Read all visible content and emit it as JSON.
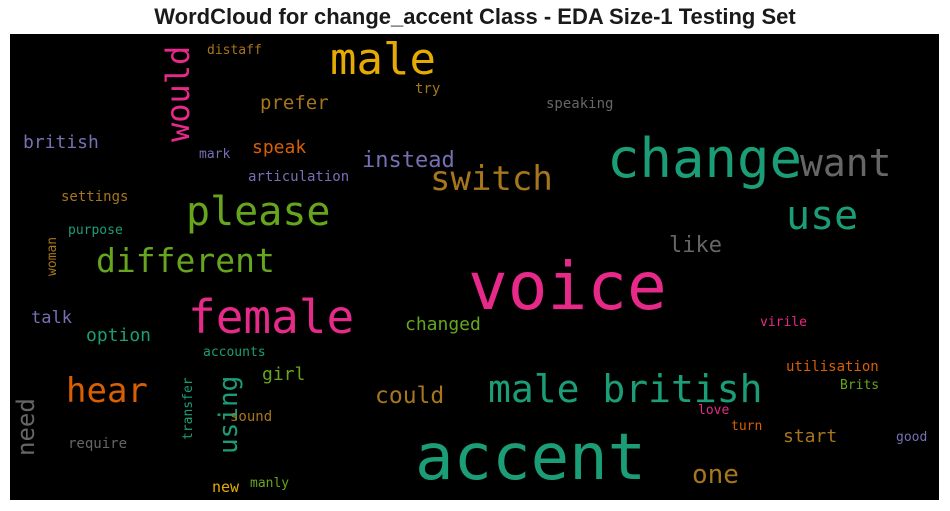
{
  "title": "WordCloud for change_accent Class - EDA Size-1 Testing Set",
  "palette": {
    "teal": "#1b9e77",
    "orange": "#d95f02",
    "purple": "#7570b3",
    "pink": "#e7298a",
    "green": "#66a61e",
    "gold": "#e6ab02",
    "brown": "#a6761d",
    "gray": "#666666",
    "background": "#000000"
  },
  "words": {
    "accent": "accent",
    "voice": "voice",
    "change": "change",
    "male": "male",
    "female": "female",
    "male_british": "male british",
    "please": "please",
    "switch": "switch",
    "use": "use",
    "want": "want",
    "different": "different",
    "hear": "hear",
    "would": "would",
    "using": "using",
    "instead": "instead",
    "could": "could",
    "one": "one",
    "need": "need",
    "like": "like",
    "prefer": "prefer",
    "speak": "speak",
    "british": "british",
    "option": "option",
    "changed": "changed",
    "talk": "talk",
    "start": "start",
    "girl": "girl",
    "distaff": "distaff",
    "try": "try",
    "speaking": "speaking",
    "mark": "mark",
    "articulation": "articulation",
    "settings": "settings",
    "purpose": "purpose",
    "woman": "woman",
    "accounts": "accounts",
    "transfer": "transfer",
    "sound": "sound",
    "require": "require",
    "new": "new",
    "manly": "manly",
    "virile": "virile",
    "utilisation": "utilisation",
    "brits": "Brits",
    "love": "love",
    "turn": "turn",
    "good": "good"
  }
}
